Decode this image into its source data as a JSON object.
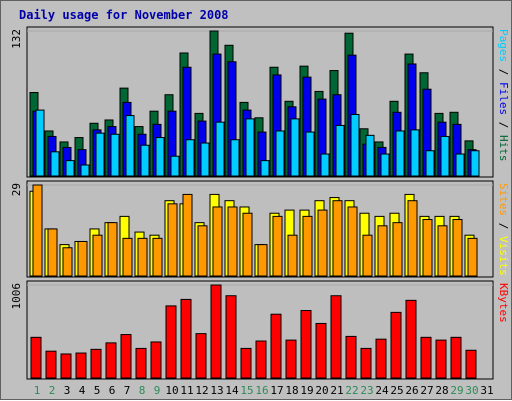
{
  "colors": {
    "background": "#c0c0c0",
    "panel": "#bebebe",
    "hits": "#006633",
    "files": "#0000ee",
    "pages": "#00ccff",
    "visits": "#ffff00",
    "sites": "#ff9900",
    "kbytes": "#ff0000",
    "title": "#0000aa",
    "weekday_label": "#000000",
    "weekend_label": "#2e8b57"
  },
  "chart_data": [
    {
      "type": "bar",
      "title": "Daily usage for November 2008",
      "categories": [
        "1",
        "2",
        "3",
        "4",
        "5",
        "6",
        "7",
        "8",
        "9",
        "10",
        "11",
        "12",
        "13",
        "14",
        "15",
        "16",
        "17",
        "18",
        "19",
        "20",
        "21",
        "22",
        "23",
        "24",
        "25",
        "26",
        "27",
        "28",
        "29",
        "30",
        "31"
      ],
      "weekend_days": [
        "1",
        "2",
        "8",
        "9",
        "15",
        "16",
        "22",
        "23",
        "29",
        "30"
      ],
      "ymax_label": "132",
      "ylim": [
        0,
        132
      ],
      "label_parts": [
        {
          "text": "Pages",
          "color": "#00ccff"
        },
        {
          "text": " / ",
          "color": "#000000"
        },
        {
          "text": "Files",
          "color": "#0000ee"
        },
        {
          "text": " / ",
          "color": "#000000"
        },
        {
          "text": "Hits",
          "color": "#006633"
        }
      ],
      "series": [
        {
          "name": "Hits",
          "values": [
            76,
            41,
            31,
            35,
            48,
            51,
            80,
            45,
            59,
            74,
            112,
            57,
            132,
            119,
            67,
            53,
            99,
            68,
            100,
            77,
            96,
            130,
            43,
            31,
            68,
            111,
            94,
            57,
            58,
            32,
            0
          ]
        },
        {
          "name": "Files",
          "values": [
            59,
            36,
            26,
            24,
            42,
            45,
            67,
            38,
            47,
            59,
            99,
            50,
            111,
            104,
            60,
            40,
            92,
            63,
            90,
            70,
            74,
            110,
            29,
            26,
            58,
            102,
            79,
            49,
            47,
            24,
            0
          ]
        },
        {
          "name": "Pages",
          "values": [
            60,
            22,
            14,
            10,
            39,
            38,
            55,
            28,
            35,
            18,
            33,
            30,
            49,
            33,
            52,
            14,
            41,
            52,
            40,
            20,
            46,
            56,
            37,
            20,
            41,
            42,
            23,
            36,
            20,
            23,
            0
          ]
        }
      ]
    },
    {
      "type": "bar",
      "categories": [
        "1",
        "2",
        "3",
        "4",
        "5",
        "6",
        "7",
        "8",
        "9",
        "10",
        "11",
        "12",
        "13",
        "14",
        "15",
        "16",
        "17",
        "18",
        "19",
        "20",
        "21",
        "22",
        "23",
        "24",
        "25",
        "26",
        "27",
        "28",
        "29",
        "30",
        "31"
      ],
      "ymax_label": "29",
      "ylim": [
        0,
        29
      ],
      "label_parts": [
        {
          "text": "Sites",
          "color": "#ff9900"
        },
        {
          "text": " / ",
          "color": "#000000"
        },
        {
          "text": "Visits",
          "color": "#ffff00"
        }
      ],
      "series": [
        {
          "name": "Visits",
          "values": [
            27,
            15,
            10,
            11,
            15,
            17,
            19,
            14,
            13,
            24,
            23,
            17,
            26,
            24,
            22,
            10,
            20,
            21,
            21,
            24,
            25,
            24,
            20,
            19,
            20,
            26,
            19,
            19,
            19,
            13,
            0
          ]
        },
        {
          "name": "Sites",
          "values": [
            29,
            15,
            9,
            11,
            13,
            17,
            12,
            12,
            12,
            23,
            26,
            16,
            22,
            22,
            20,
            10,
            19,
            13,
            19,
            21,
            24,
            22,
            13,
            16,
            17,
            24,
            18,
            16,
            18,
            12,
            0
          ]
        }
      ]
    },
    {
      "type": "bar",
      "categories": [
        "1",
        "2",
        "3",
        "4",
        "5",
        "6",
        "7",
        "8",
        "9",
        "10",
        "11",
        "12",
        "13",
        "14",
        "15",
        "16",
        "17",
        "18",
        "19",
        "20",
        "21",
        "22",
        "23",
        "24",
        "25",
        "26",
        "27",
        "28",
        "29",
        "30",
        "31"
      ],
      "ymax_label": "1006",
      "ylim": [
        0,
        1006
      ],
      "label_parts": [
        {
          "text": "KBytes",
          "color": "#ff0000"
        }
      ],
      "series": [
        {
          "name": "KBytes",
          "values": [
            440,
            290,
            260,
            270,
            310,
            380,
            470,
            320,
            390,
            780,
            850,
            480,
            1006,
            890,
            320,
            400,
            690,
            410,
            730,
            590,
            890,
            450,
            320,
            420,
            710,
            840,
            440,
            410,
            440,
            300,
            0
          ]
        }
      ]
    }
  ]
}
